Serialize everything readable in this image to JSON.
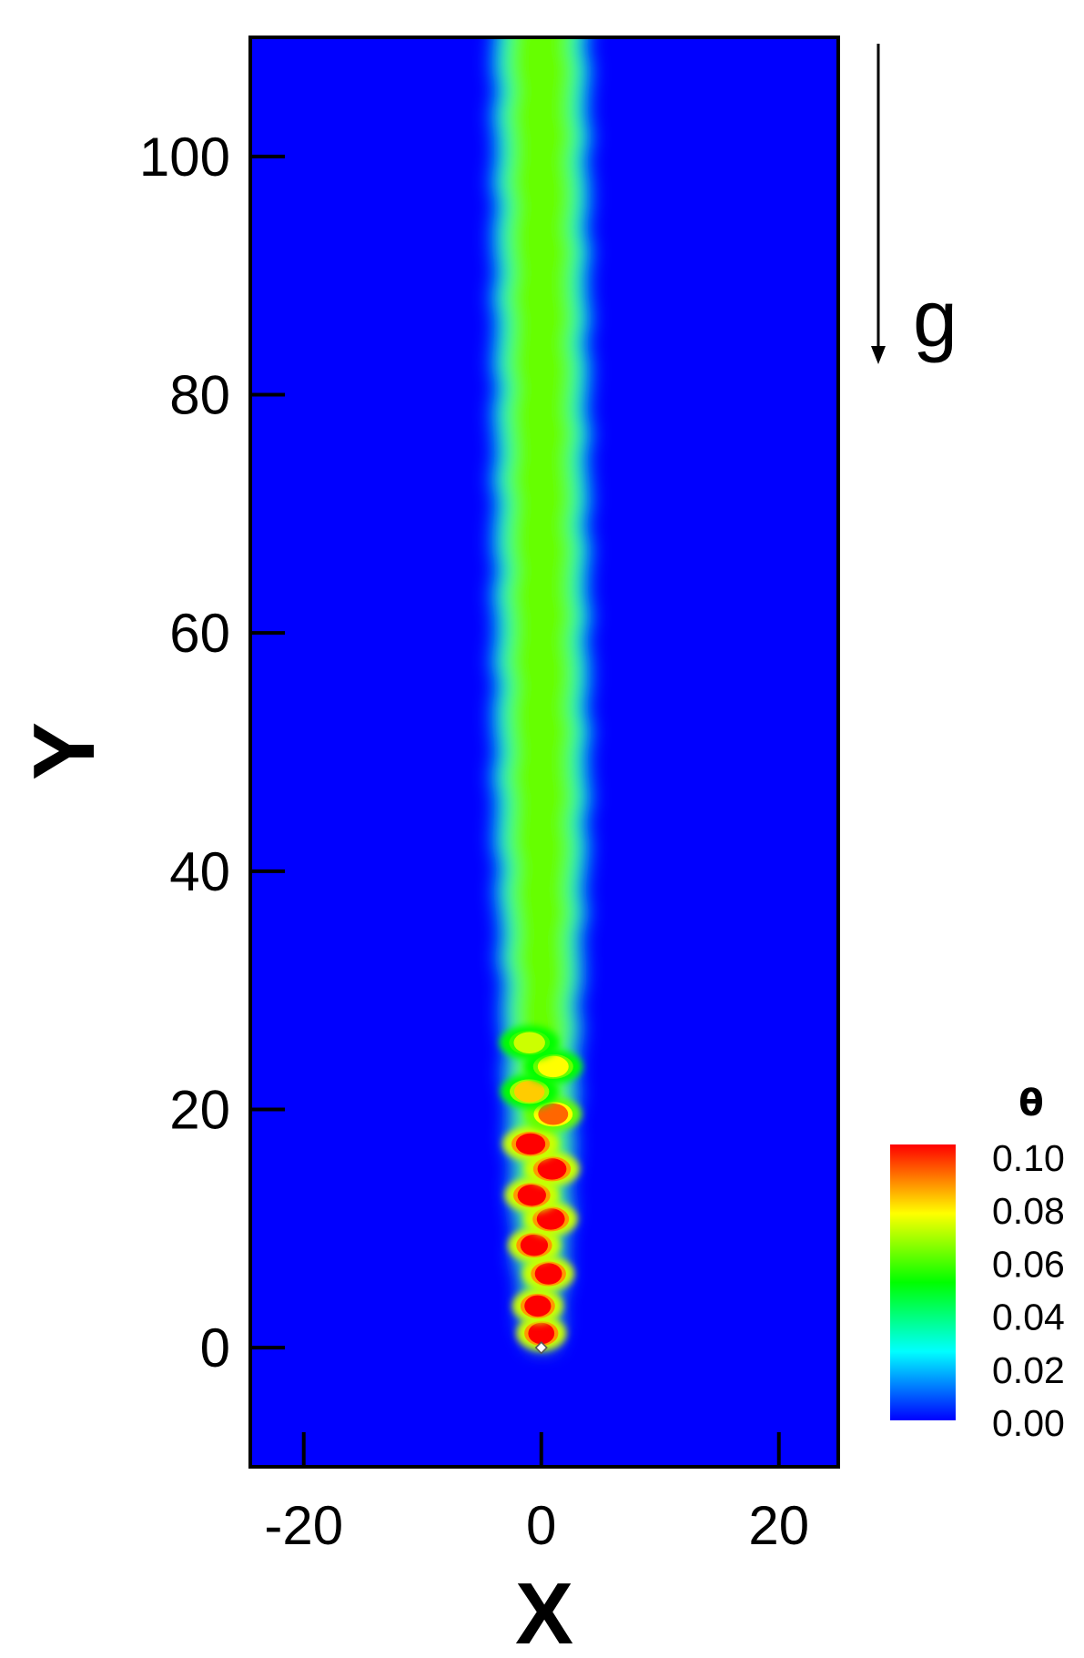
{
  "chart_data": {
    "type": "heatmap",
    "title": "",
    "xlabel": "X",
    "ylabel": "Y",
    "xlim": [
      -24.5,
      25
    ],
    "ylim": [
      -10,
      110
    ],
    "x_ticks": [
      -20,
      0,
      20
    ],
    "y_ticks": [
      0,
      20,
      40,
      60,
      80,
      100
    ],
    "x_tick_labels": [
      "-20",
      "0",
      "20"
    ],
    "y_tick_labels": [
      "0",
      "20",
      "40",
      "60",
      "80",
      "100"
    ],
    "colorbar": {
      "title": "θ",
      "range": [
        0.0,
        0.1
      ],
      "tick_values": [
        0.0,
        0.02,
        0.04,
        0.06,
        0.08,
        0.1
      ],
      "tick_labels": [
        "0.00",
        "0.02",
        "0.04",
        "0.06",
        "0.08",
        "0.10"
      ],
      "colormap": [
        "#0000ff",
        "#00ffff",
        "#00ff00",
        "#ffff00",
        "#ff0000"
      ]
    },
    "field": {
      "description_values": "plume of θ rising from source at (0,0)",
      "source": [
        0,
        0
      ],
      "plume_core_value": 0.06,
      "plume_halfwidth_top": 3.2,
      "background_value": 0.0,
      "vortex_blobs": [
        {
          "x": 0.0,
          "y": 1.2,
          "value": 0.1
        },
        {
          "x": -0.3,
          "y": 3.5,
          "value": 0.1
        },
        {
          "x": 0.6,
          "y": 6.2,
          "value": 0.1
        },
        {
          "x": -0.6,
          "y": 8.6,
          "value": 0.1
        },
        {
          "x": 0.8,
          "y": 10.8,
          "value": 0.1
        },
        {
          "x": -0.8,
          "y": 12.8,
          "value": 0.1
        },
        {
          "x": 0.9,
          "y": 15.0,
          "value": 0.1
        },
        {
          "x": -0.9,
          "y": 17.1,
          "value": 0.1
        },
        {
          "x": 1.0,
          "y": 19.6,
          "value": 0.09
        },
        {
          "x": -1.0,
          "y": 21.5,
          "value": 0.08
        },
        {
          "x": 1.0,
          "y": 23.6,
          "value": 0.075
        },
        {
          "x": -1.0,
          "y": 25.6,
          "value": 0.07
        }
      ]
    },
    "annotation": {
      "label": "g",
      "direction": "down"
    }
  }
}
